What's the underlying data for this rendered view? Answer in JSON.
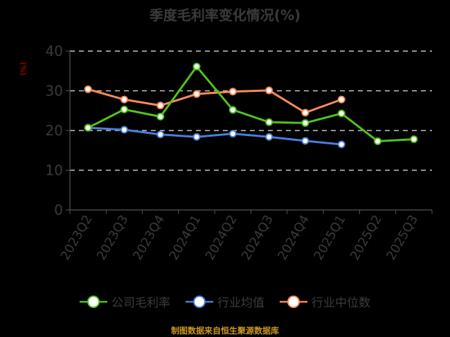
{
  "title": "季度毛利率变化情况(%)",
  "footer": "制图数据来自恒生聚源数据库",
  "chart_data": {
    "type": "line",
    "title": "季度毛利率变化情况(%)",
    "xlabel": "",
    "ylabel": "(%)",
    "ylim": [
      0,
      40
    ],
    "yticks": [
      0,
      10,
      20,
      30,
      40
    ],
    "grid": "horizontal dashed",
    "legend_position": "bottom",
    "categories": [
      "2023Q2",
      "2023Q3",
      "2023Q4",
      "2024Q1",
      "2024Q2",
      "2024Q3",
      "2024Q4",
      "2025Q1",
      "2025Q2",
      "2025Q3"
    ],
    "series": [
      {
        "name": "公司毛利率",
        "color": "#52c41a",
        "values": [
          20.7,
          25.3,
          23.5,
          36.1,
          25.2,
          22.1,
          21.9,
          24.3,
          17.3,
          17.8
        ]
      },
      {
        "name": "行业均值",
        "color": "#4a7fe0",
        "values": [
          20.7,
          20.2,
          19.0,
          18.4,
          19.2,
          18.4,
          17.4,
          16.5,
          null,
          null
        ]
      },
      {
        "name": "行业中位数",
        "color": "#ff8a5b",
        "values": [
          30.4,
          27.8,
          26.3,
          29.2,
          29.8,
          30.1,
          24.5,
          27.8,
          null,
          null
        ]
      }
    ]
  },
  "legend": [
    {
      "label": "公司毛利率",
      "color": "#52c41a"
    },
    {
      "label": "行业均值",
      "color": "#4a7fe0"
    },
    {
      "label": "行业中位数",
      "color": "#ff8a5b"
    }
  ]
}
